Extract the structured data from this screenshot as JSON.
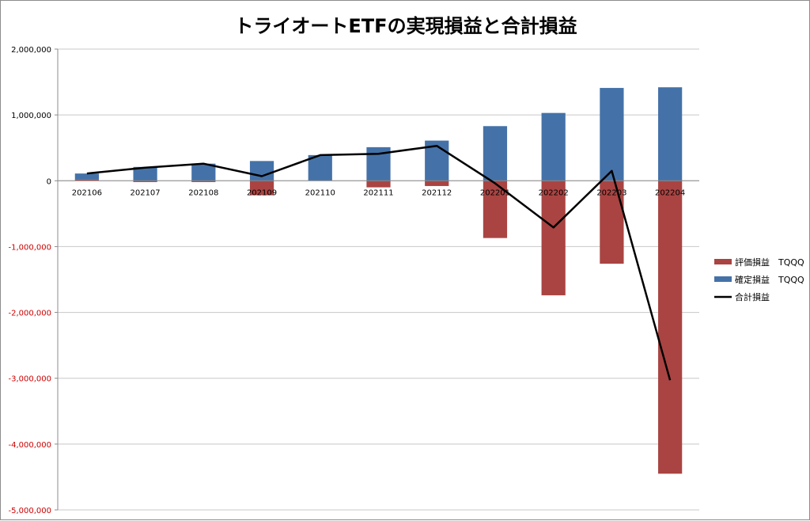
{
  "chart_data": {
    "type": "bar",
    "title": "トライオートETFの実現損益と合計損益",
    "xlabel": "",
    "ylabel": "",
    "categories": [
      "202106",
      "202107",
      "202108",
      "202109",
      "202110",
      "202111",
      "202112",
      "202201",
      "202202",
      "202203",
      "202204"
    ],
    "yticks": [
      2000000,
      1000000,
      0,
      -1000000,
      -2000000,
      -3000000,
      -4000000,
      -5000000
    ],
    "ytick_labels": [
      "2,000,000",
      "1,000,000",
      "0",
      "-1,000,000",
      "-2,000,000",
      "-3,000,000",
      "-4,000,000",
      "-5,000,000"
    ],
    "ylim": [
      -5000000,
      2000000
    ],
    "stacked": true,
    "grid": true,
    "legend_position": "right",
    "series": [
      {
        "name": "評価損益　TQQQ",
        "kind": "bar",
        "color": "#a94442",
        "values": [
          20000,
          -20000,
          -20000,
          -220000,
          0,
          -100000,
          -80000,
          -870000,
          -1740000,
          -1260000,
          -4450000
        ]
      },
      {
        "name": "確定損益　TQQQ",
        "kind": "bar",
        "color": "#4472a8",
        "values": [
          90000,
          210000,
          260000,
          300000,
          390000,
          510000,
          610000,
          830000,
          1030000,
          1410000,
          1420000
        ]
      },
      {
        "name": "合計損益",
        "kind": "line",
        "color": "#000000",
        "values": [
          110000,
          200000,
          260000,
          70000,
          390000,
          410000,
          530000,
          -40000,
          -710000,
          150000,
          -3030000
        ]
      }
    ],
    "tick_colors": {
      "positive": "#000000",
      "negative": "#cc0000"
    }
  }
}
